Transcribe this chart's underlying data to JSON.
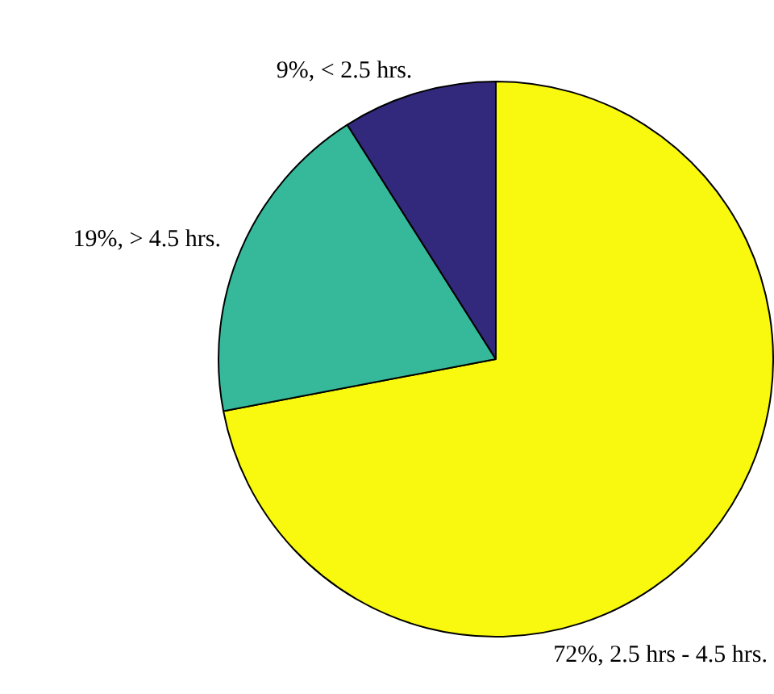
{
  "chart_data": {
    "type": "pie",
    "categories": [
      "72%, 2.5 hrs - 4.5 hrs.",
      "19%, > 4.5 hrs.",
      "9%, < 2.5 hrs."
    ],
    "values": [
      72,
      19,
      9
    ],
    "colors": [
      "#f9f90f",
      "#35b99a",
      "#33297c"
    ],
    "legend": false
  }
}
